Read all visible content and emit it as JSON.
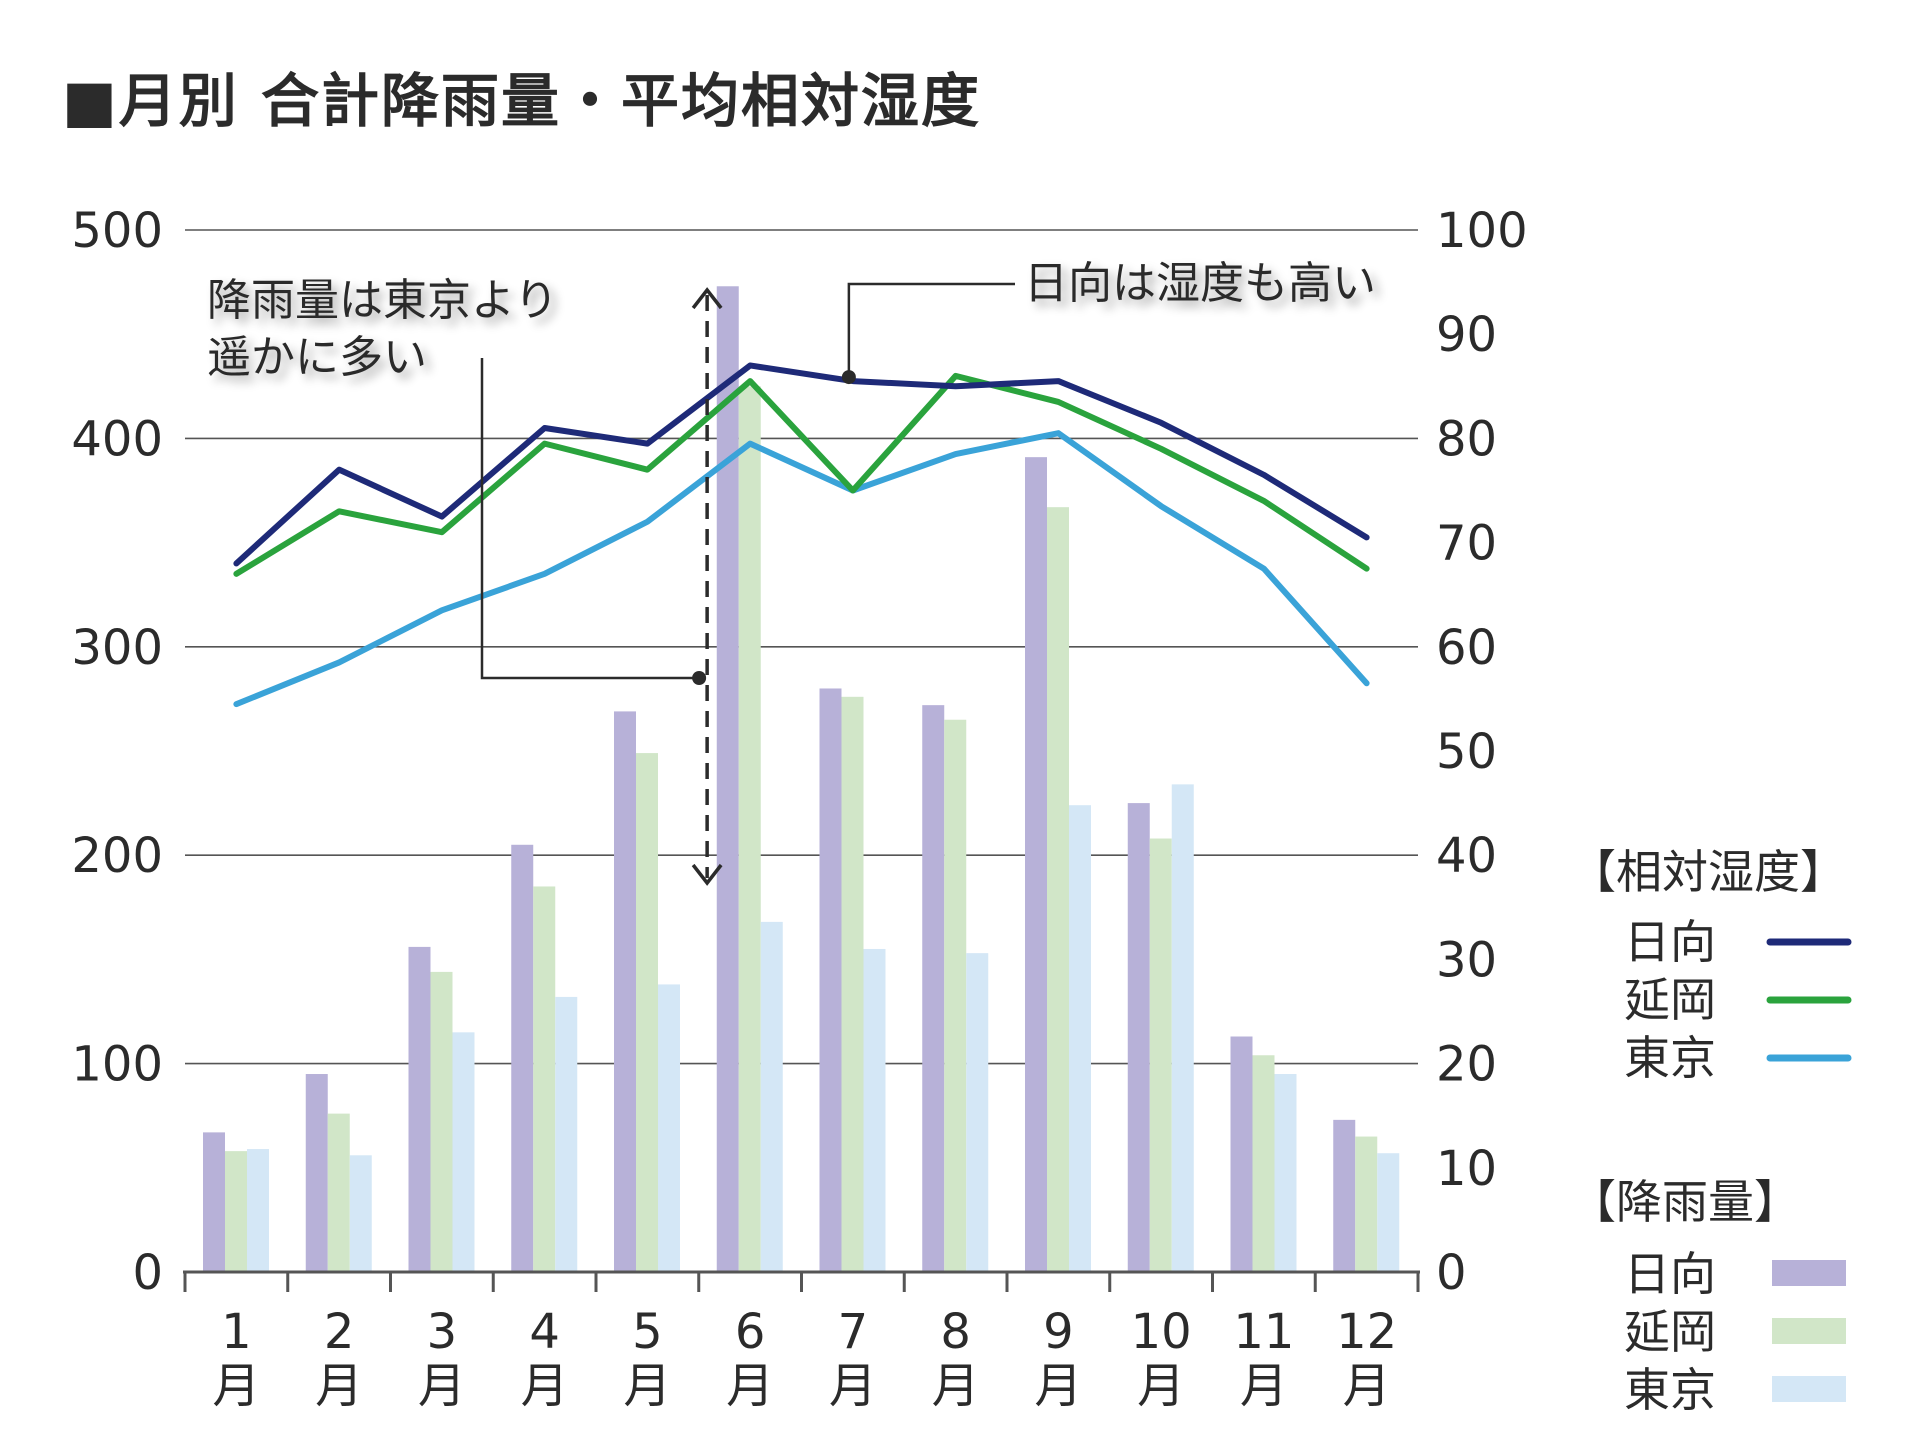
{
  "title": "■月別 合計降雨量・平均相対湿度",
  "chart_data": {
    "type": "bar",
    "title": "■月別 合計降雨量・平均相対湿度",
    "categories": [
      "1月",
      "2月",
      "3月",
      "4月",
      "5月",
      "6月",
      "7月",
      "8月",
      "9月",
      "10月",
      "11月",
      "12月"
    ],
    "category_parts": [
      [
        "1",
        "月"
      ],
      [
        "2",
        "月"
      ],
      [
        "3",
        "月"
      ],
      [
        "4",
        "月"
      ],
      [
        "5",
        "月"
      ],
      [
        "6",
        "月"
      ],
      [
        "7",
        "月"
      ],
      [
        "8",
        "月"
      ],
      [
        "9",
        "月"
      ],
      [
        "10",
        "月"
      ],
      [
        "11",
        "月"
      ],
      [
        "12",
        "月"
      ]
    ],
    "left_axis": {
      "label": "降雨量",
      "ylim": [
        0,
        500
      ],
      "ticks": [
        "0",
        "100",
        "200",
        "300",
        "400",
        "500"
      ]
    },
    "right_axis": {
      "label": "相対湿度",
      "ylim": [
        0,
        100
      ],
      "ticks": [
        "0",
        "10",
        "20",
        "30",
        "40",
        "50",
        "60",
        "70",
        "80",
        "90",
        "100"
      ]
    },
    "grid": true,
    "bar_series": [
      {
        "name": "日向",
        "color": "#b7b1d8",
        "values": [
          67,
          95,
          156,
          205,
          269,
          473,
          280,
          272,
          391,
          225,
          113,
          73
        ]
      },
      {
        "name": "延岡",
        "color": "#d1e6c8",
        "values": [
          58,
          76,
          144,
          185,
          249,
          425,
          276,
          265,
          367,
          208,
          104,
          65
        ]
      },
      {
        "name": "東京",
        "color": "#d4e7f6",
        "values": [
          59,
          56,
          115,
          132,
          138,
          168,
          155,
          153,
          224,
          234,
          95,
          57
        ]
      }
    ],
    "line_series": [
      {
        "name": "日向",
        "color": "#1e2a78",
        "values": [
          68,
          77,
          72.5,
          81,
          79.5,
          87,
          85.5,
          85,
          85.5,
          81.5,
          76.5,
          70.5
        ]
      },
      {
        "name": "延岡",
        "color": "#2aa33d",
        "values": [
          67,
          73,
          71,
          79.5,
          77,
          85.5,
          75,
          86,
          83.5,
          79,
          74,
          67.5
        ]
      },
      {
        "name": "東京",
        "color": "#3aa3d8",
        "values": [
          54.5,
          58.5,
          63.5,
          67,
          72,
          79.5,
          75,
          78.5,
          80.5,
          73.5,
          67.5,
          56.5
        ]
      }
    ],
    "annotations": {
      "rain_note": [
        "降雨量は東京より",
        "遥かに多い"
      ],
      "humidity_note": "日向は湿度も高い"
    },
    "legend": {
      "humidity_title": "【相対湿度】",
      "rain_title": "【降雨量】",
      "names": [
        "日向",
        "延岡",
        "東京"
      ]
    }
  }
}
